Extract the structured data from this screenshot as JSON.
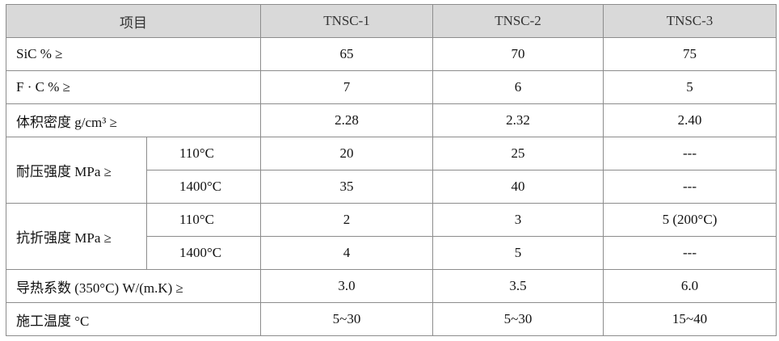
{
  "table": {
    "header": [
      "项目",
      "TNSC-1",
      "TNSC-2",
      "TNSC-3"
    ],
    "rows": [
      {
        "label": "SiC % ≥",
        "values": [
          "65",
          "70",
          "75"
        ]
      },
      {
        "label": "F · C % ≥",
        "values": [
          "7",
          "6",
          "5"
        ]
      },
      {
        "label": "体积密度  g/cm³ ≥",
        "values": [
          "2.28",
          "2.32",
          "2.40"
        ]
      },
      {
        "label": "耐压强度  MPa ≥",
        "sub": [
          {
            "label": "110°C",
            "values": [
              "20",
              "25",
              "---"
            ]
          },
          {
            "label": "1400°C",
            "values": [
              "35",
              "40",
              "---"
            ]
          }
        ]
      },
      {
        "label": "抗折强度  MPa ≥",
        "sub": [
          {
            "label": "110°C",
            "values": [
              "2",
              "3",
              "5 (200°C)"
            ]
          },
          {
            "label": "1400°C",
            "values": [
              "4",
              "5",
              "---"
            ]
          }
        ]
      },
      {
        "label": "导热系数  (350°C) W/(m.K) ≥",
        "values": [
          "3.0",
          "3.5",
          "6.0"
        ]
      },
      {
        "label": "施工温度  °C",
        "values": [
          "5~30",
          "5~30",
          "15~40"
        ]
      }
    ]
  }
}
